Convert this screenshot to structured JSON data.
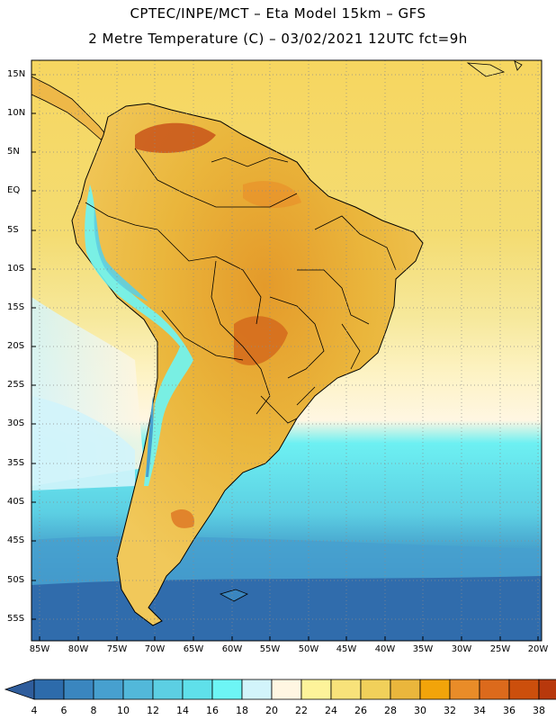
{
  "header": {
    "line1": "CPTEC/INPE/MCT –  Eta Model 15km – GFS",
    "line2": "2 Metre Temperature (C) – 03/02/2021 12UTC fct=9h"
  },
  "map": {
    "region": "South America",
    "lat_labels": [
      "15N",
      "10N",
      "5N",
      "EQ",
      "5S",
      "10S",
      "15S",
      "20S",
      "25S",
      "30S",
      "35S",
      "40S",
      "45S",
      "50S",
      "55S"
    ],
    "lon_labels": [
      "85W",
      "80W",
      "75W",
      "70W",
      "65W",
      "60W",
      "55W",
      "50W",
      "45W",
      "40W",
      "35W",
      "30W",
      "25W",
      "20W"
    ]
  },
  "colorbar": {
    "labels": [
      "4",
      "6",
      "8",
      "10",
      "12",
      "14",
      "16",
      "18",
      "20",
      "22",
      "24",
      "26",
      "28",
      "30",
      "32",
      "34",
      "36",
      "38"
    ],
    "colors": [
      "#2d6bab",
      "#3a86bf",
      "#47a0cf",
      "#52b8da",
      "#5ccfe3",
      "#5fe0ea",
      "#6df5f5",
      "#d2f4fb",
      "#fff6e2",
      "#fdf39a",
      "#f8e27a",
      "#f1d05a",
      "#eab63c",
      "#f2a40a",
      "#e98c28",
      "#dc6a1c",
      "#cc4f0c",
      "#b8380c"
    ],
    "below_color": "#2f5d9c",
    "above_color": "#b8380c"
  }
}
